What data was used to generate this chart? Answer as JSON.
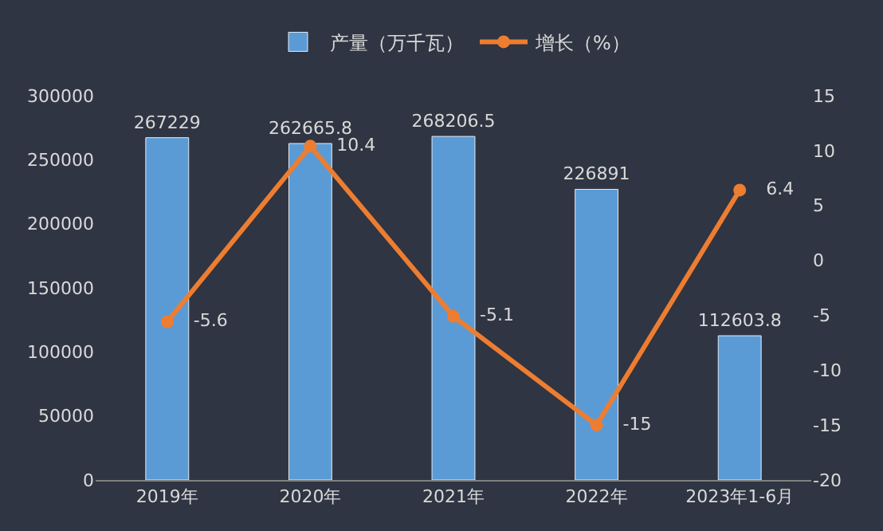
{
  "chart_data": {
    "type": "bar",
    "categories": [
      "2019年",
      "2020年",
      "2021年",
      "2022年",
      "2023年1-6月"
    ],
    "series": [
      {
        "name": "产量（万千瓦）",
        "color": "#5b9bd5",
        "values": [
          267229,
          262665.8,
          268206.5,
          226891,
          112603.8
        ]
      },
      {
        "name": "增长（%）",
        "color": "#ed7d31",
        "type": "line",
        "axis": "y2",
        "marker": "circle",
        "values": [
          -5.6,
          10.4,
          -5.1,
          -15,
          6.4
        ]
      }
    ],
    "ylim": [
      0,
      300000
    ],
    "yticks": [
      0,
      50000,
      100000,
      150000,
      200000,
      250000,
      300000
    ],
    "y2lim": [
      -20,
      15
    ],
    "y2ticks": [
      -20,
      -15,
      -10,
      -5,
      0,
      5,
      10,
      15
    ],
    "legend": "top",
    "data_labels": true
  }
}
